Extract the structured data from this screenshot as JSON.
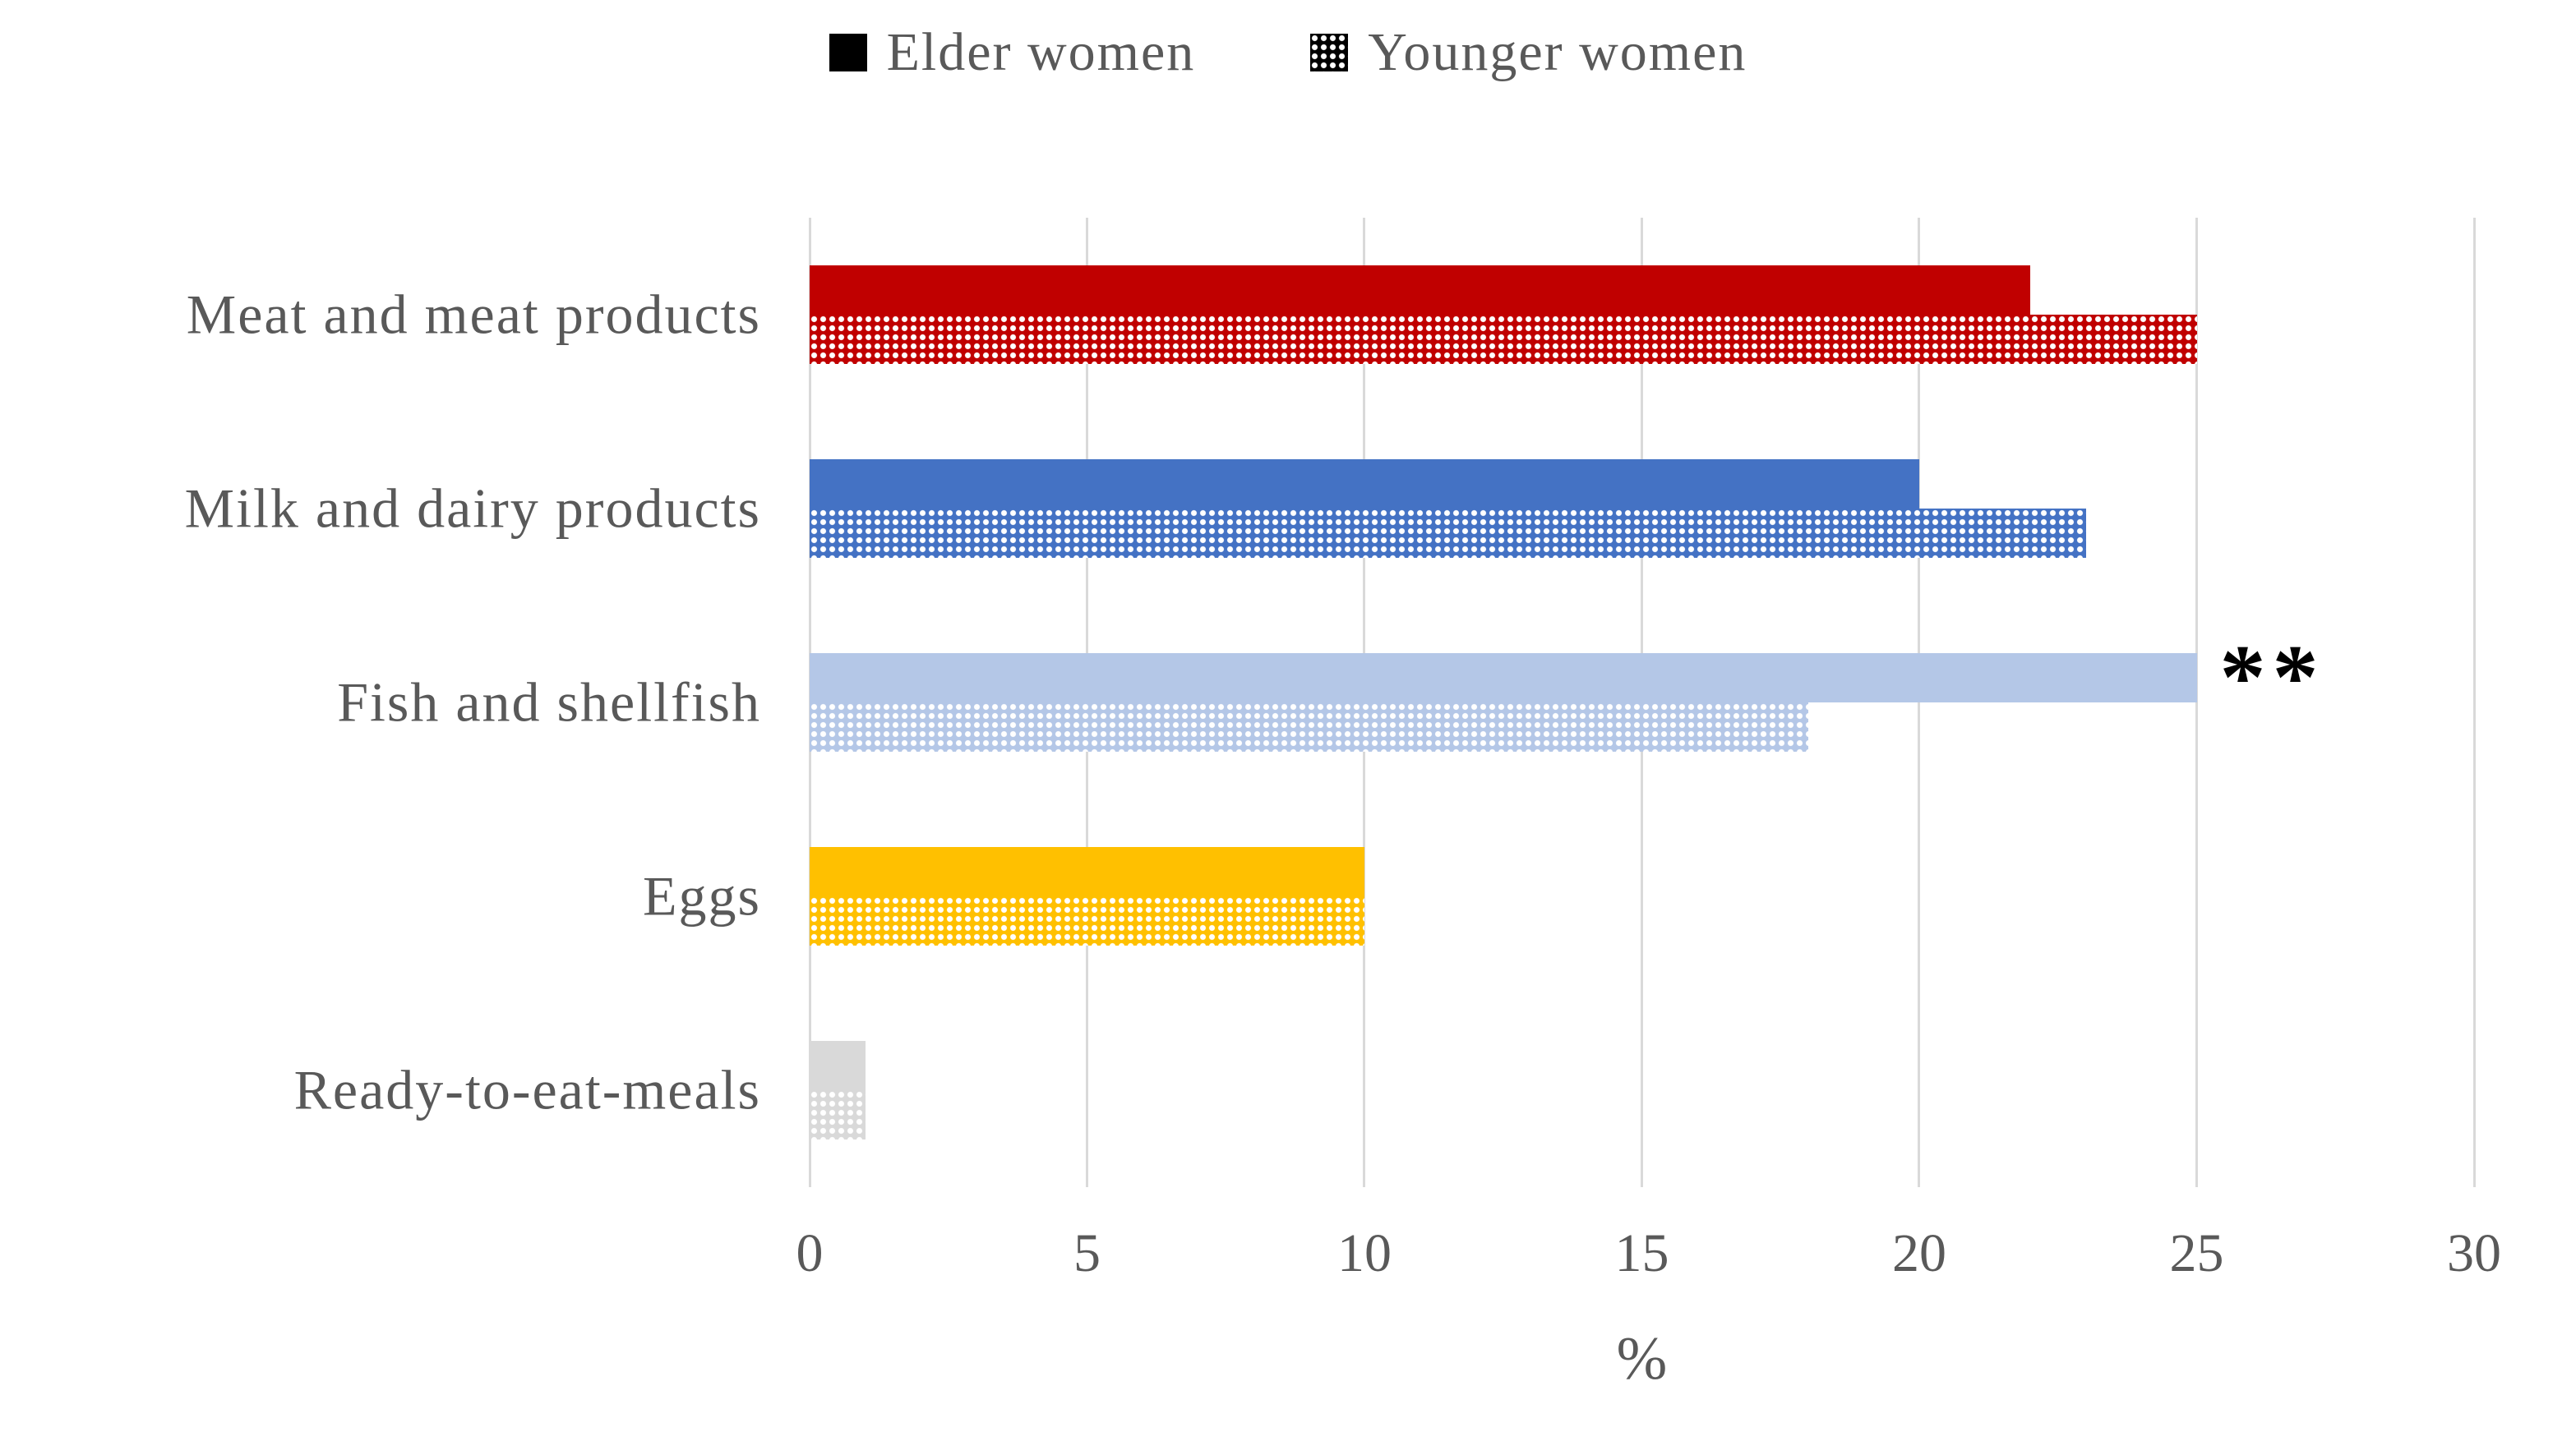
{
  "chart_data": {
    "type": "bar",
    "orientation": "horizontal",
    "title": "",
    "categories": [
      "Meat and meat products",
      "Milk and dairy products",
      "Fish and shellfish",
      "Eggs",
      "Ready-to-eat-meals"
    ],
    "category_colors": [
      "#C00000",
      "#4472C4",
      "#B4C7E7",
      "#FFC000",
      "#D9D9D9"
    ],
    "series": [
      {
        "name": "Elder women",
        "pattern": "solid",
        "values": [
          22,
          20,
          25,
          10,
          1
        ]
      },
      {
        "name": "Younger women",
        "pattern": "dotted",
        "values": [
          25,
          23,
          18,
          10,
          1
        ]
      }
    ],
    "xlabel": "%",
    "xlim": [
      0,
      30
    ],
    "xticks": [
      0,
      5,
      10,
      15,
      20,
      25,
      30
    ],
    "grid": "vertical-gridlines",
    "legend_position": "top",
    "annotations": [
      {
        "text": "**",
        "category_index": 2,
        "series_index": 0,
        "value": 25
      }
    ],
    "colors": {
      "legend_swatch": "#000000",
      "gridline": "#D9D9D9",
      "text": "#595959",
      "annotation": "#000000"
    }
  }
}
